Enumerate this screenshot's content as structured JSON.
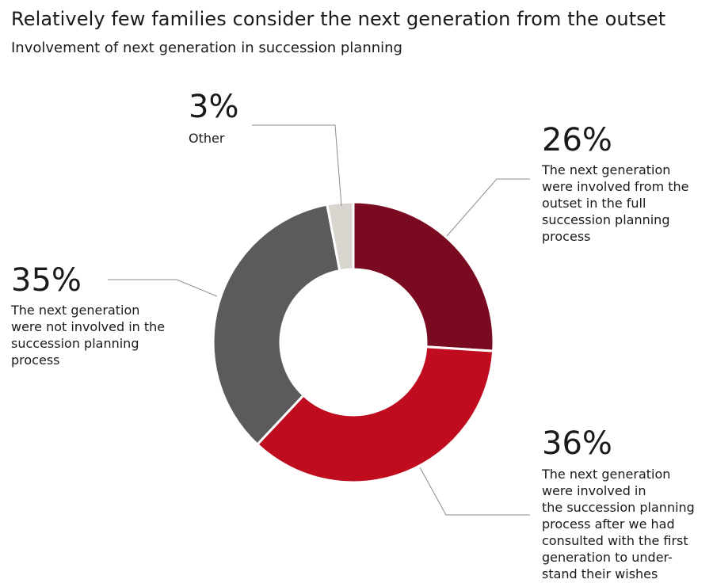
{
  "title": "Relatively few families consider the next generation from the outset",
  "subtitle": "Involvement of next generation in succession planning",
  "chart_data": {
    "type": "pie",
    "donut": true,
    "title": "Relatively few families consider the next generation from the outset",
    "subtitle": "Involvement of next generation in succession planning",
    "legend": "none",
    "slices": [
      {
        "label": "26%",
        "value": 26,
        "description": [
          "The next generation",
          "were involved from the",
          "outset in the full",
          "succession planning",
          "process"
        ],
        "color": "#7a0a20"
      },
      {
        "label": "36%",
        "value": 36,
        "description": [
          "The next generation",
          "were involved in",
          "the succession planning",
          "process after we had",
          "consulted with the first",
          "generation to under-",
          "stand their wishes"
        ],
        "color": "#c00c1f"
      },
      {
        "label": "35%",
        "value": 35,
        "description": [
          "The next generation",
          "were not involved in the",
          "succession planning",
          "process"
        ],
        "color": "#5b5b5b"
      },
      {
        "label": "3%",
        "value": 3,
        "description": [
          "Other"
        ],
        "color": "#d9d5cf"
      }
    ]
  }
}
